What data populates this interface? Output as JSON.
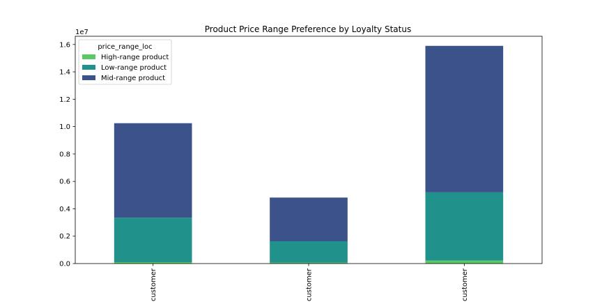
{
  "chart_data": {
    "type": "bar",
    "stacked": true,
    "title": "Product Price Range Preference by Loyalty Status",
    "xlabel": "",
    "ylabel": "",
    "y_offset_label": "1e7",
    "categories": [
      "customer",
      "customer",
      "customer"
    ],
    "series": [
      {
        "name": "High-range product",
        "color": "#5ac864",
        "values": [
          100000,
          70000,
          220000
        ]
      },
      {
        "name": "Low-range product",
        "color": "#21918c",
        "values": [
          3250000,
          1560000,
          4980000
        ]
      },
      {
        "name": "Mid-range product",
        "color": "#3b528b",
        "values": [
          6900000,
          3190000,
          10700000
        ]
      }
    ],
    "ylim": [
      0,
      16600000
    ],
    "yticks": [
      0,
      2000000,
      4000000,
      6000000,
      8000000,
      10000000,
      12000000,
      14000000,
      16000000
    ],
    "ytick_labels": [
      "0.0",
      "0.2",
      "0.4",
      "0.6",
      "0.8",
      "1.0",
      "1.2",
      "1.4",
      "1.6"
    ],
    "legend": {
      "title": "price_range_loc",
      "placement": "top-left"
    },
    "grid": false
  }
}
